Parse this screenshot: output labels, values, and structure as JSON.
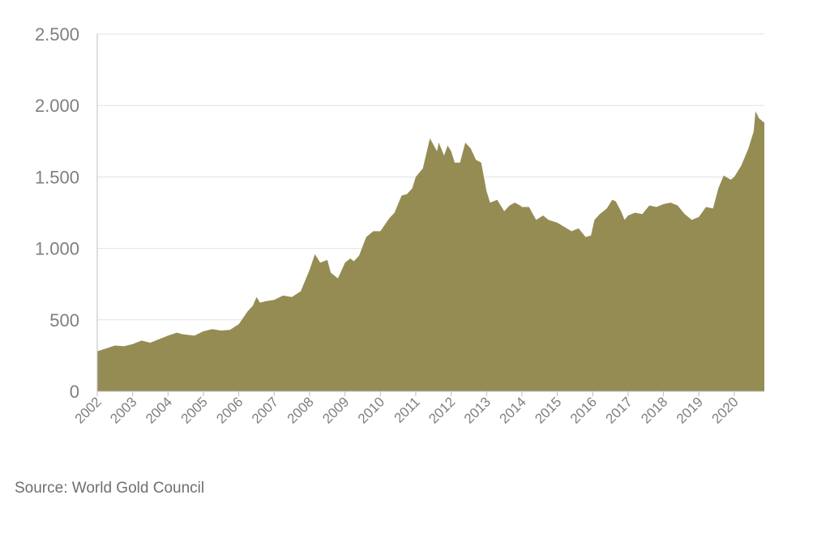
{
  "chart_data": {
    "type": "area",
    "color": "#958c54",
    "grid": true,
    "ylim": [
      0,
      2500
    ],
    "yticks": [
      {
        "value": 0,
        "label": "0"
      },
      {
        "value": 500,
        "label": "500"
      },
      {
        "value": 1000,
        "label": "1.000"
      },
      {
        "value": 1500,
        "label": "1.500"
      },
      {
        "value": 2000,
        "label": "2.000"
      },
      {
        "value": 2500,
        "label": "2.500"
      }
    ],
    "xlim": [
      2002.0,
      2020.85
    ],
    "xticks": [
      "2002",
      "2003",
      "2004",
      "2005",
      "2006",
      "2007",
      "2008",
      "2009",
      "2010",
      "2011",
      "2012",
      "2013",
      "2014",
      "2015",
      "2016",
      "2017",
      "2018",
      "2019",
      "2020"
    ],
    "series": [
      {
        "x": [
          2002.0,
          2002.25,
          2002.5,
          2002.75,
          2003.0,
          2003.25,
          2003.5,
          2003.75,
          2004.0,
          2004.25,
          2004.4,
          2004.75,
          2005.0,
          2005.25,
          2005.5,
          2005.75,
          2006.0,
          2006.25,
          2006.4,
          2006.5,
          2006.6,
          2006.75,
          2007.0,
          2007.25,
          2007.5,
          2007.75,
          2008.0,
          2008.15,
          2008.3,
          2008.5,
          2008.6,
          2008.8,
          2009.0,
          2009.15,
          2009.25,
          2009.4,
          2009.6,
          2009.8,
          2010.0,
          2010.25,
          2010.4,
          2010.6,
          2010.75,
          2010.9,
          2011.0,
          2011.2,
          2011.4,
          2011.6,
          2011.65,
          2011.8,
          2011.9,
          2012.0,
          2012.1,
          2012.25,
          2012.4,
          2012.55,
          2012.7,
          2012.85,
          2013.0,
          2013.1,
          2013.3,
          2013.5,
          2013.65,
          2013.8,
          2013.95,
          2014.0,
          2014.2,
          2014.4,
          2014.6,
          2014.75,
          2015.0,
          2015.2,
          2015.4,
          2015.6,
          2015.8,
          2015.95,
          2016.05,
          2016.2,
          2016.4,
          2016.55,
          2016.65,
          2016.8,
          2016.9,
          2017.0,
          2017.2,
          2017.4,
          2017.6,
          2017.8,
          2018.0,
          2018.2,
          2018.4,
          2018.6,
          2018.8,
          2019.0,
          2019.2,
          2019.4,
          2019.55,
          2019.7,
          2019.9,
          2020.0,
          2020.2,
          2020.4,
          2020.55,
          2020.6,
          2020.7,
          2020.85
        ],
        "y": [
          280,
          300,
          320,
          315,
          330,
          355,
          340,
          365,
          390,
          410,
          400,
          390,
          420,
          435,
          425,
          430,
          470,
          560,
          600,
          660,
          620,
          630,
          640,
          670,
          660,
          700,
          850,
          960,
          900,
          920,
          830,
          790,
          900,
          930,
          910,
          950,
          1080,
          1120,
          1120,
          1210,
          1250,
          1370,
          1380,
          1420,
          1500,
          1560,
          1770,
          1680,
          1740,
          1650,
          1720,
          1680,
          1600,
          1600,
          1740,
          1700,
          1620,
          1600,
          1400,
          1320,
          1340,
          1260,
          1300,
          1320,
          1300,
          1290,
          1290,
          1200,
          1230,
          1200,
          1180,
          1150,
          1120,
          1140,
          1080,
          1090,
          1200,
          1240,
          1280,
          1340,
          1330,
          1260,
          1200,
          1230,
          1250,
          1240,
          1300,
          1290,
          1310,
          1320,
          1300,
          1240,
          1200,
          1220,
          1290,
          1280,
          1420,
          1510,
          1480,
          1500,
          1580,
          1700,
          1820,
          1960,
          1910,
          1880
        ]
      }
    ]
  },
  "source_text": "Source: World Gold Council"
}
